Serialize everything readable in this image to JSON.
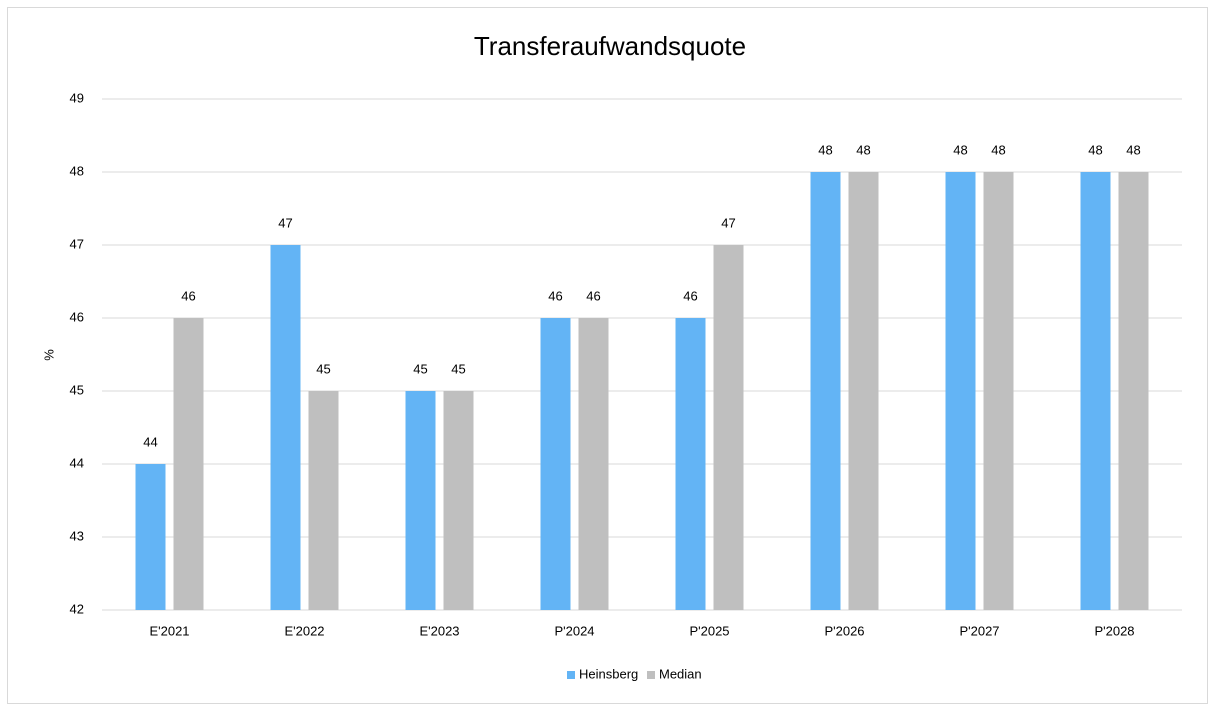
{
  "chart_data": {
    "type": "bar",
    "title": "Transferaufwandsquote",
    "y_label": "%",
    "categories": [
      "E'2021",
      "E'2022",
      "E'2023",
      "P'2024",
      "P'2025",
      "P'2026",
      "P'2027",
      "P'2028"
    ],
    "series": [
      {
        "name": "Heinsberg",
        "color": "#63b4f5",
        "values": [
          44,
          47,
          45,
          46,
          46,
          48,
          48,
          48
        ]
      },
      {
        "name": "Median",
        "color": "#bfbfbf",
        "values": [
          46,
          45,
          45,
          46,
          47,
          48,
          48,
          48
        ]
      }
    ],
    "ylim": [
      42,
      49
    ],
    "yticks": [
      42,
      43,
      44,
      45,
      46,
      47,
      48,
      49
    ],
    "grid": true,
    "legend": "bottom"
  }
}
